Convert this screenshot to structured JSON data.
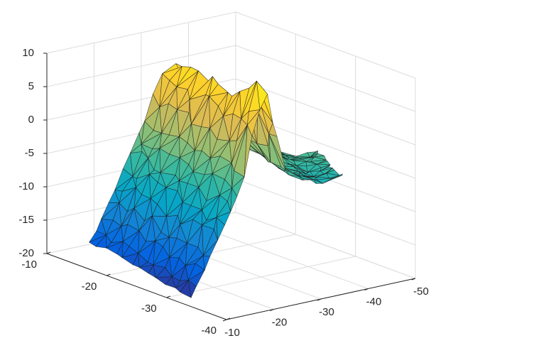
{
  "chart_data": {
    "type": "surface",
    "title": "",
    "xlabel": "",
    "ylabel": "",
    "zlabel": "",
    "grid": true,
    "colormap": "parula",
    "colormap_stops": [
      "#352a87",
      "#0363e1",
      "#1485d4",
      "#06a7c6",
      "#38b99e",
      "#92bf73",
      "#d9ba56",
      "#fcce2e",
      "#f9fb0e"
    ],
    "xlim": [
      -10,
      -50
    ],
    "ylim": [
      -10,
      -40
    ],
    "zlim": [
      -20,
      10
    ],
    "x_ticks": [
      "-10",
      "-20",
      "-30",
      "-40",
      "-50"
    ],
    "y_ticks": [
      "-10",
      "-20",
      "-30",
      "-40"
    ],
    "z_ticks": [
      "10",
      "5",
      "0",
      "-5",
      "-10",
      "-15",
      "-20"
    ],
    "mesh": "triangulated irregular surface",
    "profile": [
      {
        "x": -12,
        "z": -18
      },
      {
        "x": -14,
        "z": -16
      },
      {
        "x": -16,
        "z": -13
      },
      {
        "x": -18,
        "z": -10
      },
      {
        "x": -20,
        "z": -7
      },
      {
        "x": -22,
        "z": -4
      },
      {
        "x": -24,
        "z": -1
      },
      {
        "x": -26,
        "z": 3
      },
      {
        "x": -28,
        "z": 8
      },
      {
        "x": -30,
        "z": 1
      },
      {
        "x": -32,
        "z": -2
      },
      {
        "x": -35,
        "z": -4
      },
      {
        "x": -38,
        "z": -5
      },
      {
        "x": -41,
        "z": -6
      },
      {
        "x": -44,
        "z": -5
      }
    ]
  }
}
